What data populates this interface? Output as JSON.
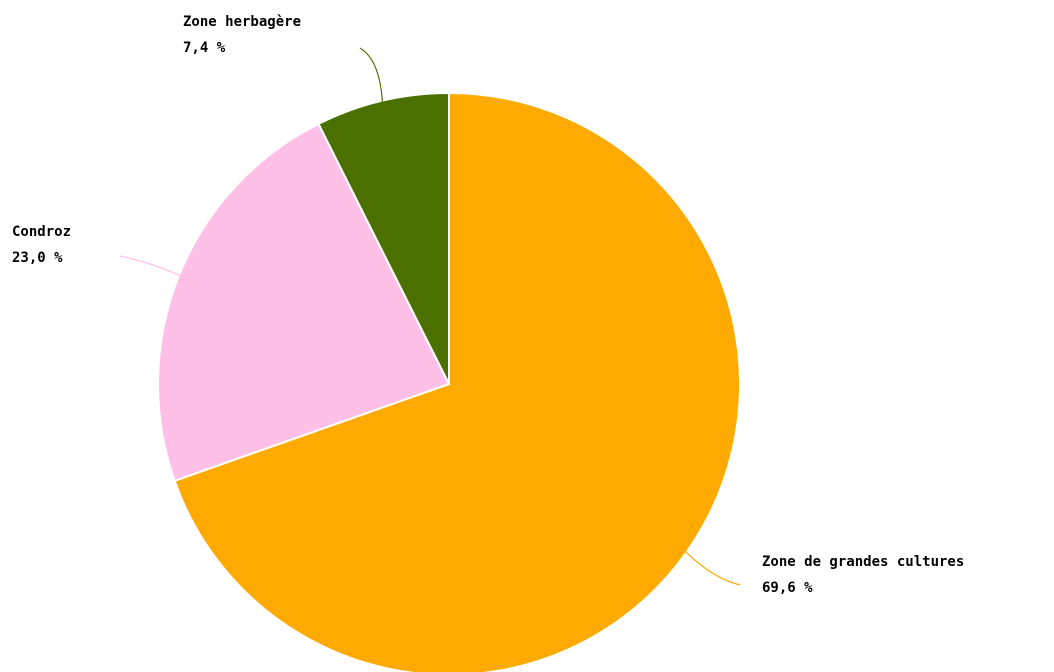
{
  "chart_data": {
    "type": "pie",
    "categories": [
      "Zone de grandes cultures",
      "Condroz",
      "Zone herbagère"
    ],
    "values": [
      69.6,
      23.0,
      7.4
    ],
    "value_labels": [
      "69,6 %",
      "23,0 %",
      "7,4 %"
    ],
    "colors": [
      "#ffaa00",
      "#ffc0e8",
      "#4b7000"
    ]
  }
}
